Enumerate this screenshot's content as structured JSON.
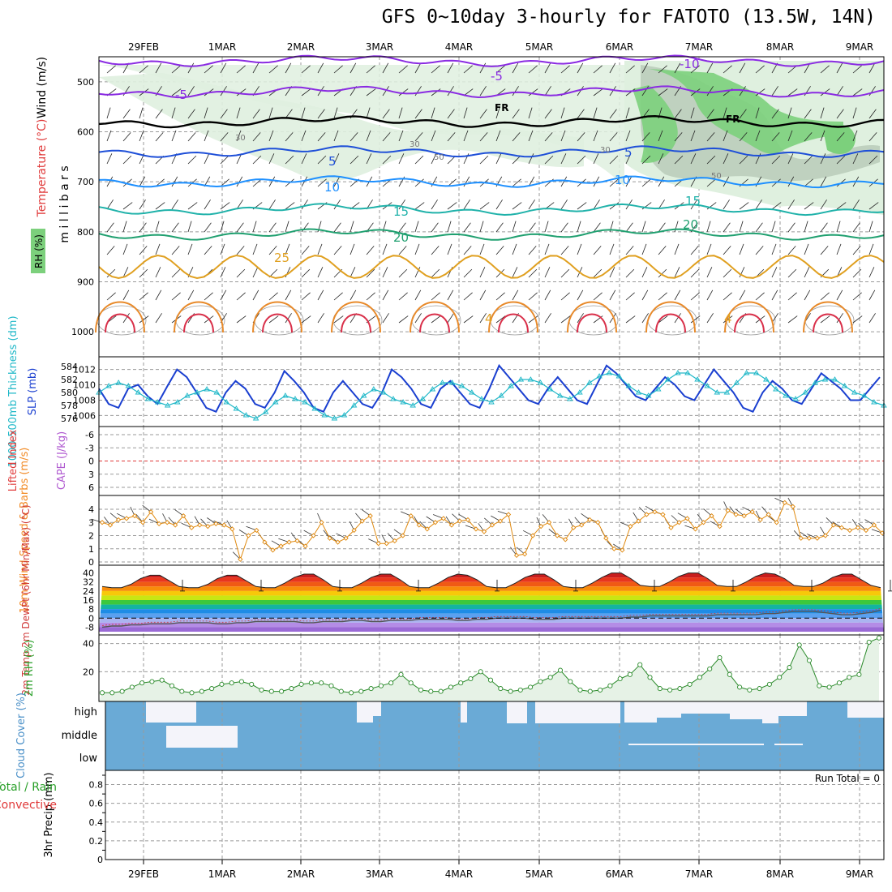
{
  "title": "GFS 0~10day 3-hourly for FATOTO (13.5W, 14N)",
  "chart_data": [
    {
      "panel": "upper-air",
      "type": "contour",
      "ylabel_parts": [
        "Wind (m/s)",
        "Temperature (°C)",
        "m i l l i b a r s"
      ],
      "rh_label": "RH (%)",
      "y_ticks": [
        "500",
        "600",
        "700",
        "800",
        "900",
        "1000"
      ],
      "ylim": [
        450,
        1050
      ],
      "isotherm_labels": [
        "-10",
        "-5",
        "-5",
        "FR",
        "FR",
        "5",
        "5",
        "10",
        "10",
        "15",
        "15",
        "20",
        "20",
        "25",
        "4",
        "4"
      ],
      "rh_labels": [
        "30",
        "30",
        "30",
        "50",
        "50"
      ],
      "isotherms": [
        {
          "level": "-10",
          "p": 458,
          "color": "#8a2be2"
        },
        {
          "level": "-5",
          "p": 520,
          "color": "#8a2be2"
        },
        {
          "level": "FR",
          "p": 580,
          "color": "#000000"
        },
        {
          "level": "5",
          "p": 640,
          "color": "#1e4fd8"
        },
        {
          "level": "10",
          "p": 700,
          "color": "#1e90ff"
        },
        {
          "level": "15",
          "p": 755,
          "color": "#20b2aa"
        },
        {
          "level": "20",
          "p": 805,
          "color": "#20a070"
        },
        {
          "level": "25",
          "p": 870,
          "color": "#e0a020"
        }
      ]
    },
    {
      "panel": "slp-thickness",
      "type": "line",
      "ylabel_left": "1000-500mb Thickness (dm)",
      "ylabel_right": "SLP (mb)",
      "left_ticks": [
        "584",
        "582",
        "580",
        "578",
        "576"
      ],
      "right_ticks": [
        "1012",
        "1010",
        "1008",
        "1006"
      ],
      "series": [
        {
          "name": "SLP (mb)",
          "color": "#1a3fd0",
          "values": [
            1009.5,
            1007.5,
            1007.0,
            1009.5,
            1010.0,
            1008.5,
            1007.5,
            1009.8,
            1012.0,
            1011.0,
            1009.0,
            1007.0,
            1006.5,
            1009.0,
            1010.5,
            1009.5,
            1007.5,
            1007.0,
            1009.0,
            1011.8,
            1010.5,
            1009.0,
            1007.0,
            1006.5,
            1009.0,
            1010.5,
            1009.0,
            1007.5,
            1007.0,
            1009.0,
            1012.0,
            1011.0,
            1009.5,
            1007.5,
            1007.0,
            1009.5,
            1010.5,
            1009.0,
            1007.5,
            1007.0,
            1009.5,
            1012.5,
            1011.0,
            1009.5,
            1008.0,
            1007.5,
            1009.5,
            1011.0,
            1009.5,
            1008.0,
            1007.5,
            1010.0,
            1012.5,
            1011.5,
            1010.0,
            1008.5,
            1008.0,
            1009.5,
            1011.0,
            1010.0,
            1008.5,
            1008.0,
            1010.0,
            1012.0,
            1010.5,
            1009.0,
            1007.0,
            1006.5,
            1009.0,
            1010.5,
            1009.5,
            1008.0,
            1007.5,
            1009.5,
            1011.5,
            1010.5,
            1009.5,
            1008.0,
            1008.0,
            1009.5,
            1011.0
          ]
        },
        {
          "name": "1000-500mb Thickness (dm)",
          "color": "#20b8c8",
          "values": [
            580.0,
            581.0,
            581.5,
            581.0,
            580.0,
            579.0,
            578.5,
            578.0,
            578.5,
            579.5,
            580.0,
            580.5,
            580.0,
            578.5,
            577.5,
            576.5,
            576.0,
            577.0,
            578.5,
            579.5,
            579.0,
            578.5,
            577.5,
            576.5,
            576.0,
            576.5,
            578.0,
            579.5,
            580.5,
            580.0,
            579.0,
            578.5,
            578.0,
            579.0,
            580.5,
            581.5,
            581.5,
            581.0,
            580.0,
            579.0,
            578.5,
            579.5,
            581.0,
            582.0,
            582.0,
            581.5,
            580.5,
            579.5,
            579.0,
            580.0,
            581.5,
            582.5,
            583.0,
            582.5,
            581.0,
            580.0,
            579.5,
            580.5,
            582.0,
            583.0,
            583.0,
            582.0,
            581.0,
            580.0,
            580.0,
            581.5,
            583.0,
            583.0,
            582.0,
            580.5,
            579.5,
            579.0,
            580.0,
            581.5,
            582.0,
            582.0,
            581.0,
            580.0,
            579.5,
            578.5,
            578.0
          ]
        }
      ]
    },
    {
      "panel": "cape-li",
      "type": "line",
      "ylabel_left": "Lifted Index",
      "ylabel_right": "CAPE (J/kg)",
      "ticks": [
        "-6",
        "-3",
        "0",
        "3",
        "6"
      ],
      "ylim": [
        -6,
        6
      ]
    },
    {
      "panel": "10m-wind",
      "type": "line",
      "ylabel": "10m Wind Speed & Barbs (m/s)",
      "ticks": [
        "4",
        "3",
        "2",
        "1",
        "0"
      ],
      "ylim": [
        0,
        4.8
      ],
      "series": [
        {
          "name": "10m Wind Speed",
          "color": "#e08a10",
          "values": [
            3.0,
            2.8,
            3.2,
            3.3,
            3.5,
            3.0,
            3.8,
            2.9,
            3.0,
            2.8,
            3.5,
            2.6,
            2.8,
            2.7,
            2.9,
            2.8,
            2.5,
            0.2,
            2.0,
            2.4,
            1.5,
            0.9,
            1.2,
            1.5,
            1.6,
            1.2,
            2.0,
            3.0,
            1.8,
            1.5,
            1.8,
            2.4,
            3.1,
            3.5,
            1.4,
            1.4,
            1.6,
            2.0,
            3.5,
            2.8,
            2.5,
            3.0,
            3.3,
            2.8,
            3.1,
            3.2,
            2.5,
            2.3,
            2.8,
            3.1,
            3.6,
            0.5,
            0.6,
            2.0,
            2.7,
            3.0,
            2.0,
            1.7,
            2.6,
            2.8,
            3.2,
            3.0,
            1.8,
            1.0,
            0.9,
            2.7,
            3.1,
            3.6,
            3.8,
            3.6,
            2.6,
            3.0,
            3.3,
            2.5,
            3.0,
            3.5,
            2.7,
            3.9,
            3.6,
            3.5,
            3.8,
            3.2,
            3.6,
            3.0,
            4.5,
            4.2,
            1.8,
            1.8,
            1.8,
            2.0,
            2.8,
            2.6,
            2.4,
            2.6,
            2.4,
            2.8,
            2.2
          ]
        }
      ]
    },
    {
      "panel": "2m-temp",
      "type": "area",
      "ylabel": "2m Temp 2m DewPt (6hr Min/Max) (°C)",
      "ticks": [
        "40",
        "32",
        "24",
        "16",
        "8",
        "0",
        "-8"
      ],
      "ylim": [
        -12,
        44
      ],
      "series": [
        {
          "name": "2m Temp",
          "color": "#000000",
          "values": [
            28,
            27,
            27,
            30,
            35,
            38,
            38,
            33,
            28,
            27,
            27,
            30,
            35,
            38,
            38,
            33,
            28,
            27,
            27,
            31,
            36,
            39,
            39,
            34,
            28,
            27,
            27,
            31,
            36,
            39,
            39,
            34,
            28,
            27,
            27,
            31,
            36,
            39,
            38,
            34,
            28,
            27,
            27,
            31,
            36,
            39,
            39,
            34,
            28,
            27,
            27,
            31,
            36,
            40,
            40,
            35,
            29,
            28,
            28,
            32,
            37,
            40,
            40,
            35,
            29,
            28,
            28,
            32,
            37,
            40,
            39,
            35,
            29,
            28,
            28,
            31,
            36,
            39,
            39,
            34,
            29,
            27
          ]
        },
        {
          "name": "2m DewPt",
          "color": "#666666",
          "values": [
            -8,
            -7,
            -7,
            -6,
            -6,
            -5,
            -5,
            -5,
            -4,
            -4,
            -4,
            -4,
            -5,
            -5,
            -4,
            -4,
            -3,
            -3,
            -3,
            -3,
            -3,
            -4,
            -4,
            -3,
            -3,
            -3,
            -2,
            -2,
            -3,
            -3,
            -2,
            -2,
            -2,
            -1,
            -1,
            -1,
            -1,
            -2,
            -2,
            -1,
            -1,
            0,
            0,
            0,
            0,
            -1,
            -1,
            -1,
            0,
            0,
            0,
            0,
            0,
            0,
            0,
            1,
            1,
            2,
            2,
            2,
            2,
            2,
            2,
            2,
            3,
            3,
            3,
            3,
            3,
            4,
            4,
            5,
            6,
            6,
            6,
            5,
            4,
            3,
            3,
            4,
            5,
            7
          ]
        }
      ]
    },
    {
      "panel": "2m-rh",
      "type": "area",
      "ylabel": "2m RH (%)",
      "ticks": [
        "40",
        "20"
      ],
      "ylim": [
        0,
        45
      ],
      "series": [
        {
          "name": "2m RH",
          "color": "#2a8a2a",
          "values": [
            5,
            5,
            6,
            9,
            12,
            13,
            14,
            10,
            6,
            5,
            6,
            8,
            11,
            12,
            13,
            11,
            7,
            6,
            6,
            8,
            11,
            12,
            12,
            10,
            6,
            5,
            6,
            8,
            10,
            12,
            18,
            12,
            7,
            6,
            6,
            9,
            12,
            15,
            20,
            14,
            8,
            6,
            7,
            9,
            13,
            16,
            21,
            13,
            7,
            6,
            7,
            10,
            15,
            18,
            25,
            16,
            8,
            7,
            8,
            11,
            16,
            22,
            30,
            18,
            9,
            7,
            8,
            11,
            16,
            23,
            39,
            28,
            10,
            9,
            12,
            16,
            18,
            41,
            44
          ]
        }
      ]
    },
    {
      "panel": "cloud-cover",
      "type": "heatmap",
      "ylabel": "Cloud Cover (%)",
      "layers": [
        "high",
        "middle",
        "low"
      ]
    },
    {
      "panel": "precip",
      "type": "bar",
      "ylabel": "3hr Precip (mm)",
      "legend_parts": [
        "Total / Rain",
        "Convective"
      ],
      "ticks": [
        "0.8",
        "0.6",
        "0.4",
        "0.2",
        "0"
      ],
      "ylim": [
        0,
        0.9
      ],
      "run_total": "Run Total = 0"
    }
  ],
  "x_dates_top": [
    "29FEB",
    "1MAR",
    "2MAR",
    "3MAR",
    "4MAR",
    "5MAR",
    "6MAR",
    "7MAR",
    "8MAR",
    "9MAR"
  ],
  "x_dates_bottom": [
    "29FEB",
    "1MAR",
    "2MAR",
    "3MAR",
    "4MAR",
    "5MAR",
    "6MAR",
    "7MAR",
    "8MAR",
    "9MAR"
  ],
  "colors": {
    "grid": "#9a9a9a",
    "cloud": "#6aaad6",
    "rh_light": "#dff0df",
    "rh_dark": "#7cd07c",
    "dewline": "#cc3333",
    "cape": "#b05ad0",
    "li": "#e03a3a",
    "wind_label": "#f28c28",
    "rh2m": "#2aa02a",
    "precip_total": "#2aa02a",
    "precip_conv": "#e03a3a",
    "slp_label": "#1a3fd0",
    "thick_label": "#20b8c8"
  }
}
